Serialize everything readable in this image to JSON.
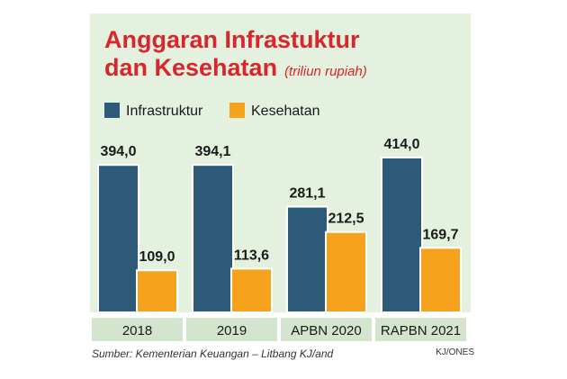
{
  "colors": {
    "background_panel": "#e4f1df",
    "title": "#d8262b",
    "infrastruktur": "#2c5a78",
    "kesehatan": "#f6a21c",
    "label_band": "#d3e5cd",
    "text": "#1a1a1a"
  },
  "chart_data": {
    "type": "bar",
    "title": "Anggaran Infrastuktur",
    "title_line2": "dan Kesehatan",
    "subtitle": "(triliun rupiah)",
    "categories": [
      "2018",
      "2019",
      "APBN 2020",
      "RAPBN 2021"
    ],
    "series": [
      {
        "name": "Infrastruktur",
        "color_key": "infrastruktur",
        "values": [
          394.0,
          394.1,
          281.1,
          414.0
        ],
        "labels": [
          "394,0",
          "394,1",
          "281,1",
          "414,0"
        ]
      },
      {
        "name": "Kesehatan",
        "color_key": "kesehatan",
        "values": [
          109.0,
          113.6,
          212.5,
          169.7
        ],
        "labels": [
          "109,0",
          "113,6",
          "212,5",
          "169,7"
        ]
      }
    ],
    "ylim": [
      0,
      414
    ],
    "grid": false,
    "legend_position": "top-left"
  },
  "footer": {
    "source": "Sumber: Kementerian Keuangan – Litbang KJ/and",
    "credit": "KJ/ONES"
  }
}
